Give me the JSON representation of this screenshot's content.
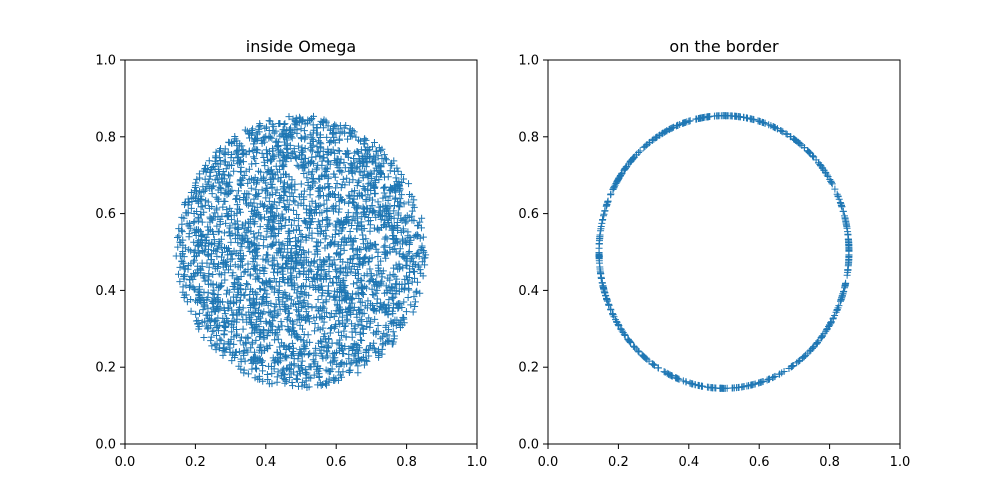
{
  "chart_data": [
    {
      "type": "scatter",
      "title": "inside Omega",
      "xlabel": "",
      "ylabel": "",
      "xlim": [
        0.0,
        1.0
      ],
      "ylim": [
        0.0,
        1.0
      ],
      "xticks": [
        "0.0",
        "0.2",
        "0.4",
        "0.6",
        "0.8",
        "1.0"
      ],
      "yticks": [
        "0.0",
        "0.2",
        "0.4",
        "0.6",
        "0.8",
        "1.0"
      ],
      "marker": "plus",
      "color": "#1f77b4",
      "grid": false,
      "region": {
        "shape": "disk",
        "center": [
          0.5,
          0.5
        ],
        "radius": 0.355
      },
      "n_points": 3000
    },
    {
      "type": "scatter",
      "title": "on the border",
      "xlabel": "",
      "ylabel": "",
      "xlim": [
        0.0,
        1.0
      ],
      "ylim": [
        0.0,
        1.0
      ],
      "xticks": [
        "0.0",
        "0.2",
        "0.4",
        "0.6",
        "0.8",
        "1.0"
      ],
      "yticks": [
        "0.0",
        "0.2",
        "0.4",
        "0.6",
        "0.8",
        "1.0"
      ],
      "marker": "plus",
      "color": "#1f77b4",
      "grid": false,
      "region": {
        "shape": "circle",
        "center": [
          0.5,
          0.5
        ],
        "radius": 0.355
      },
      "n_points": 600
    }
  ]
}
